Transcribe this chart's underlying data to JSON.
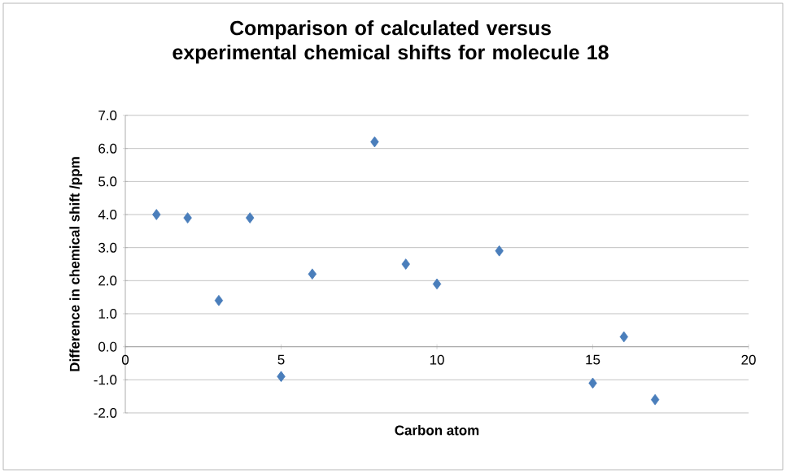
{
  "chart_data": {
    "type": "scatter",
    "title": "Comparison of calculated versus experimental chemical shifts for molecule 18",
    "xlabel": "Carbon atom",
    "ylabel": "Difference in chemical shift /ppm",
    "x": [
      1,
      2,
      3,
      4,
      5,
      6,
      8,
      9,
      10,
      12,
      15,
      16,
      17
    ],
    "values": [
      4.0,
      3.9,
      1.4,
      3.9,
      -0.9,
      2.2,
      6.2,
      2.5,
      1.9,
      2.9,
      -1.1,
      0.3,
      -1.6
    ],
    "color": "#4a7ebb",
    "marker": "diamond",
    "grid": "y",
    "xlim": [
      0,
      20
    ],
    "ylim": [
      -2,
      7
    ],
    "xticks": [
      0,
      5,
      10,
      15,
      20
    ],
    "yticks": [
      {
        "value": -2,
        "label": "-2.0"
      },
      {
        "value": -1,
        "label": "-1.0"
      },
      {
        "value": 0,
        "label": "0.0"
      },
      {
        "value": 1,
        "label": "1.0"
      },
      {
        "value": 2,
        "label": "2.0"
      },
      {
        "value": 3,
        "label": "3.0"
      },
      {
        "value": 4,
        "label": "4.0"
      },
      {
        "value": 5,
        "label": "5.0"
      },
      {
        "value": 6,
        "label": "6.0"
      },
      {
        "value": 7,
        "label": "7.0"
      }
    ]
  }
}
